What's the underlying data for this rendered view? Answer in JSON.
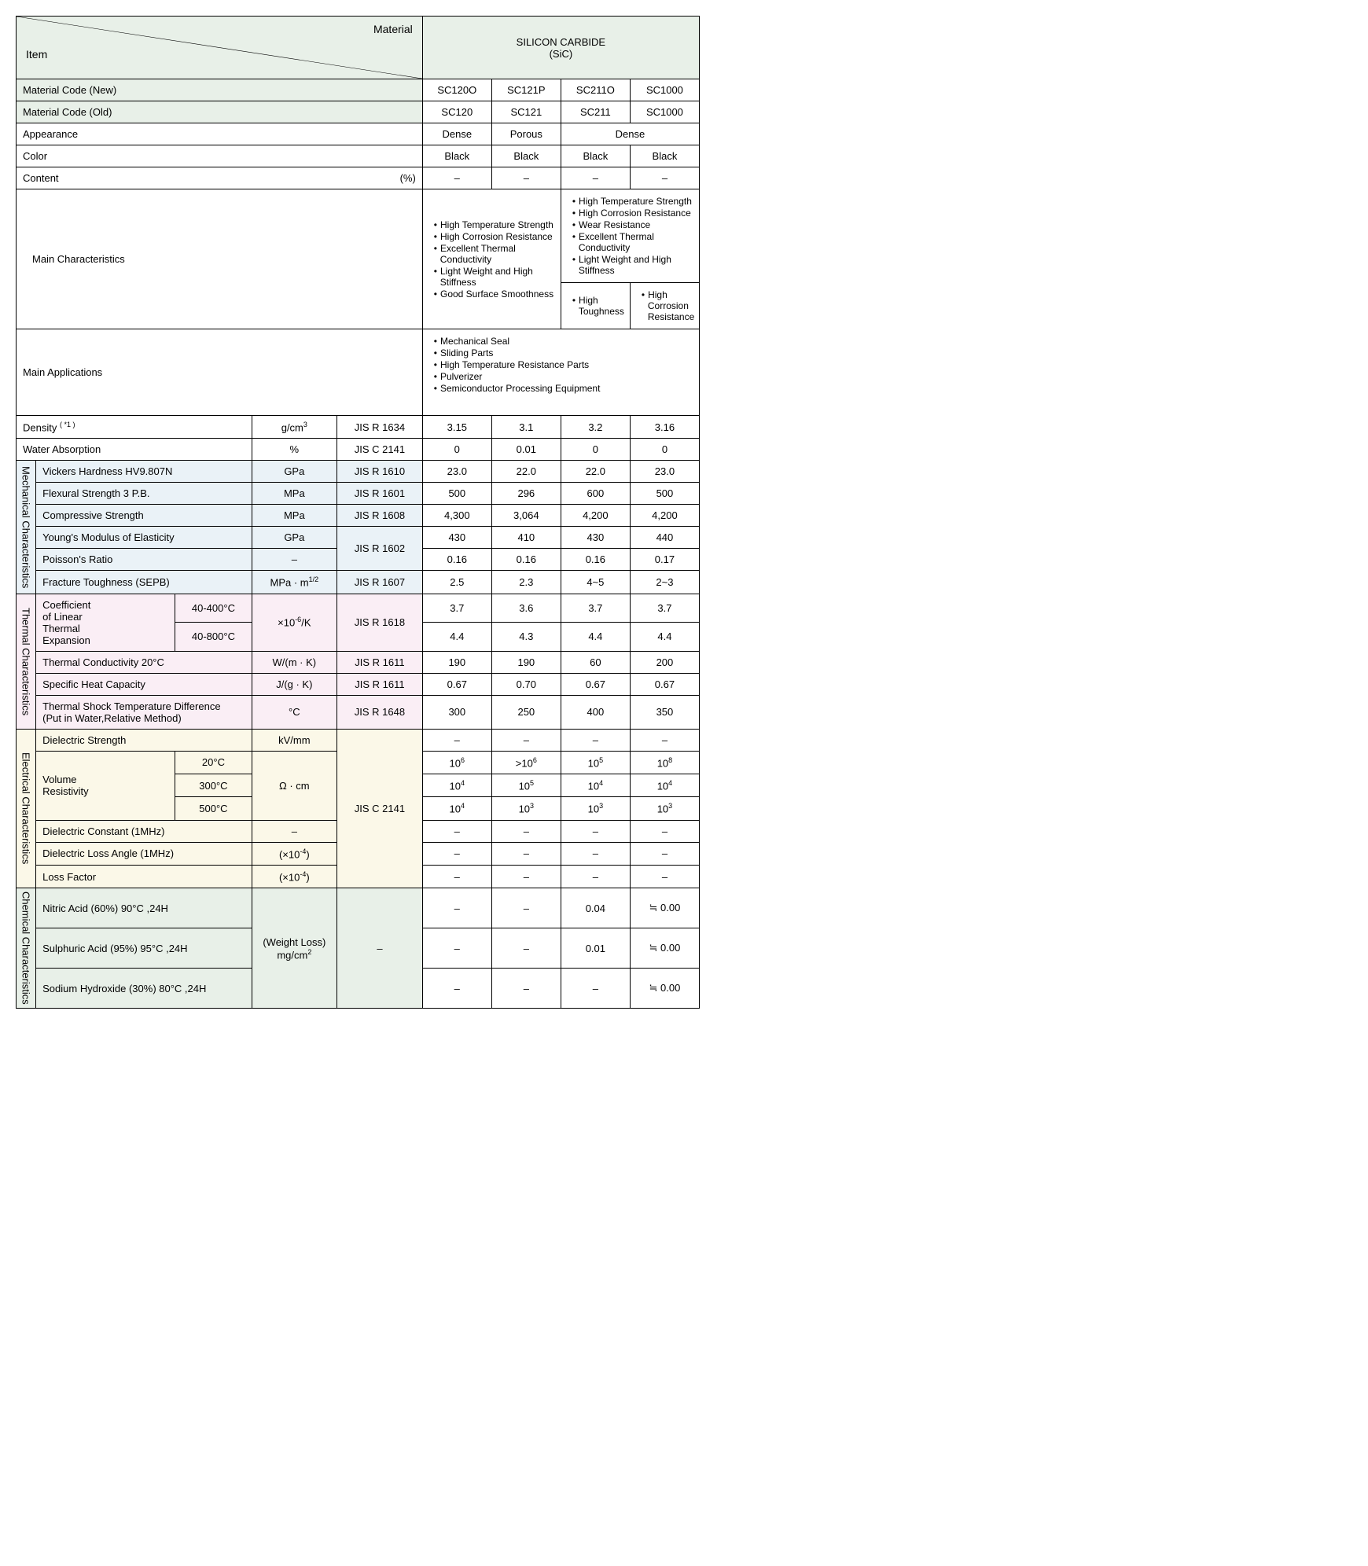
{
  "colors": {
    "header_bg": "#e8f0e8",
    "mech_bg": "#eaf2f7",
    "therm_bg": "#faeef5",
    "elec_bg": "#fbf8e8",
    "chem_bg": "#e8f0e8",
    "border": "#000000",
    "text": "#000000"
  },
  "header": {
    "item_label": "Item",
    "material_label": "Material",
    "group_title_line1": "SILICON CARBIDE",
    "group_title_line2": "(SiC)"
  },
  "codes": {
    "new_label": "Material Code (New)",
    "old_label": "Material Code (Old)",
    "new": [
      "SC120O",
      "SC121P",
      "SC211O",
      "SC1000"
    ],
    "old": [
      "SC120",
      "SC121",
      "SC211",
      "SC1000"
    ]
  },
  "appearance": {
    "label": "Appearance",
    "v1": "Dense",
    "v2": "Porous",
    "v34": "Dense"
  },
  "color_row": {
    "label": "Color",
    "vals": [
      "Black",
      "Black",
      "Black",
      "Black"
    ]
  },
  "content": {
    "label": "Content",
    "unit_suffix": "(%)",
    "vals": [
      "–",
      "–",
      "–",
      "–"
    ]
  },
  "characteristics": {
    "label": "Main Characteristics",
    "left_list": [
      "High Temperature Strength",
      "High Corrosion Resistance",
      "Excellent Thermal Conductivity",
      "Light Weight and High Stiffness",
      "Good Surface Smoothness"
    ],
    "right_top_list": [
      "High Temperature Strength",
      "High Corrosion Resistance",
      "Wear Resistance",
      "Excellent Thermal Conductivity",
      "Light Weight and High Stiffness"
    ],
    "right_bottom_left": [
      "High Toughness"
    ],
    "right_bottom_right": [
      "High Corrosion Resistance"
    ]
  },
  "applications": {
    "label": "Main Applications",
    "list": [
      "Mechanical Seal",
      "Sliding Parts",
      "High Temperature Resistance Parts",
      "Pulverizer",
      "Semiconductor Processing Equipment"
    ]
  },
  "density": {
    "label_html": "Density <sup>( *1 )</sup>",
    "unit_html": "g/cm<sup>3</sup>",
    "std": "JIS R 1634",
    "vals": [
      "3.15",
      "3.1",
      "3.2",
      "3.16"
    ]
  },
  "water": {
    "label": "Water Absorption",
    "unit": "%",
    "std": "JIS C 2141",
    "vals": [
      "0",
      "0.01",
      "0",
      "0"
    ]
  },
  "cat_labels": {
    "mech": "Mechanical Characteristics",
    "therm": "Thermal Characteristics",
    "elec": "Electrical Characteristics",
    "chem": "Chemical Characteristics"
  },
  "mech": {
    "vickers": {
      "label": "Vickers Hardness HV9.807N",
      "unit": "GPa",
      "std": "JIS R 1610",
      "vals": [
        "23.0",
        "22.0",
        "22.0",
        "23.0"
      ]
    },
    "flexural": {
      "label": "Flexural Strength 3 P.B.",
      "unit": "MPa",
      "std": "JIS R 1601",
      "vals": [
        "500",
        "296",
        "600",
        "500"
      ]
    },
    "compress": {
      "label": "Compressive Strength",
      "unit": "MPa",
      "std": "JIS R 1608",
      "vals": [
        "4,300",
        "3,064",
        "4,200",
        "4,200"
      ]
    },
    "young": {
      "label": "Young's Modulus of Elasticity",
      "unit": "GPa",
      "std": "JIS R 1602",
      "vals": [
        "430",
        "410",
        "430",
        "440"
      ]
    },
    "poisson": {
      "label": "Poisson's Ratio",
      "unit": "–",
      "vals": [
        "0.16",
        "0.16",
        "0.16",
        "0.17"
      ]
    },
    "fracture": {
      "label": "Fracture Toughness (SEPB)",
      "unit_html": "MPa · m<sup>1/2</sup>",
      "std": "JIS R 1607",
      "vals": [
        "2.5",
        "2.3",
        "4~5",
        "2~3"
      ]
    }
  },
  "therm": {
    "cte_label_html": "Coefficient<br>of Linear<br>Thermal<br>Expansion",
    "cte_range1": "40-400°C",
    "cte_range2": "40-800°C",
    "cte_unit_html": "×10<sup>-6</sup>/K",
    "cte_std": "JIS R 1618",
    "cte_vals1": [
      "3.7",
      "3.6",
      "3.7",
      "3.7"
    ],
    "cte_vals2": [
      "4.4",
      "4.3",
      "4.4",
      "4.4"
    ],
    "tc": {
      "label": "Thermal Conductivity  20°C",
      "unit": "W/(m · K)",
      "std": "JIS R 1611",
      "vals": [
        "190",
        "190",
        "60",
        "200"
      ]
    },
    "shc": {
      "label": "Specific Heat Capacity",
      "unit": "J/(g · K)",
      "std": "JIS R 1611",
      "vals": [
        "0.67",
        "0.70",
        "0.67",
        "0.67"
      ]
    },
    "tstd": {
      "label_html": "Thermal Shock Temperature Difference<br>(Put in Water,Relative Method)",
      "unit": "°C",
      "std": "JIS R 1648",
      "vals": [
        "300",
        "250",
        "400",
        "350"
      ]
    }
  },
  "elec": {
    "ds": {
      "label": "Dielectric Strength",
      "unit": "kV/mm",
      "vals": [
        "–",
        "–",
        "–",
        "–"
      ]
    },
    "vr_label": "Volume\nResistivity",
    "vr_unit": "Ω · cm",
    "vr_std": "JIS C 2141",
    "vr_t1": "20°C",
    "vr_v1_html": [
      "10<sup>6</sup>",
      ">10<sup>6</sup>",
      "10<sup>5</sup>",
      "10<sup>8</sup>"
    ],
    "vr_t2": "300°C",
    "vr_v2_html": [
      "10<sup>4</sup>",
      "10<sup>5</sup>",
      "10<sup>4</sup>",
      "10<sup>4</sup>"
    ],
    "vr_t3": "500°C",
    "vr_v3_html": [
      "10<sup>4</sup>",
      "10<sup>3</sup>",
      "10<sup>3</sup>",
      "10<sup>3</sup>"
    ],
    "dc": {
      "label": "Dielectric Constant (1MHz)",
      "unit": "–",
      "vals": [
        "–",
        "–",
        "–",
        "–"
      ]
    },
    "dla": {
      "label": "Dielectric Loss Angle (1MHz)",
      "unit_html": "(×10<sup>-4</sup>)",
      "vals": [
        "–",
        "–",
        "–",
        "–"
      ]
    },
    "lf": {
      "label": "Loss Factor",
      "unit_html": "(×10<sup>-4</sup>)",
      "vals": [
        "–",
        "–",
        "–",
        "–"
      ]
    }
  },
  "chem": {
    "unit_html": "(Weight Loss)<br>mg/cm<sup>2</sup>",
    "std": "–",
    "nitric": {
      "label": "Nitric Acid (60%) 90°C ,24H",
      "vals": [
        "–",
        "–",
        "0.04",
        "≒ 0.00"
      ]
    },
    "sulph": {
      "label": "Sulphuric Acid (95%) 95°C ,24H",
      "vals": [
        "–",
        "–",
        "0.01",
        "≒ 0.00"
      ]
    },
    "naoh": {
      "label": "Sodium Hydroxide (30%) 80°C ,24H",
      "vals": [
        "–",
        "–",
        "–",
        "≒ 0.00"
      ]
    }
  }
}
